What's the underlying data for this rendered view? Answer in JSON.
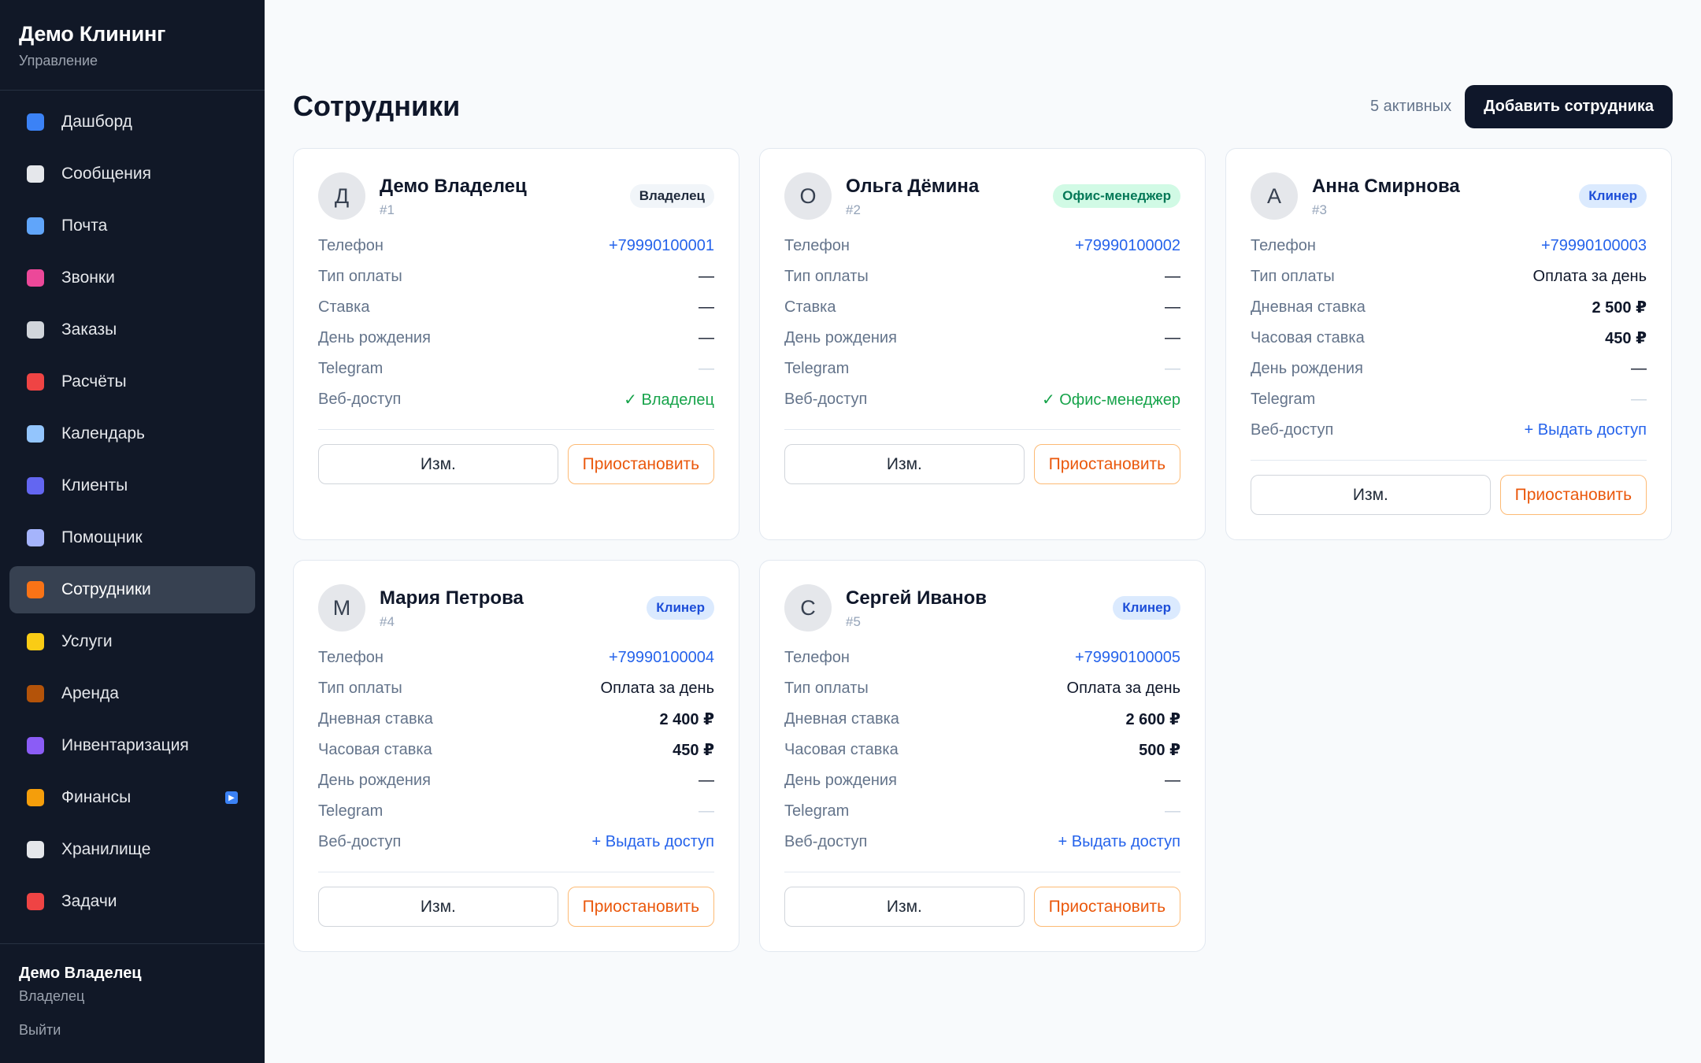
{
  "sidebar": {
    "brand_title": "Демо Клининг",
    "brand_sub": "Управление",
    "items": [
      {
        "label": "Дашборд",
        "icon": "chart-icon",
        "color": "#3b82f6"
      },
      {
        "label": "Сообщения",
        "icon": "speech-bubble-icon",
        "color": "#e5e7eb"
      },
      {
        "label": "Почта",
        "icon": "mail-icon",
        "color": "#60a5fa"
      },
      {
        "label": "Звонки",
        "icon": "phone-icon",
        "color": "#ec4899"
      },
      {
        "label": "Заказы",
        "icon": "clipboard-icon",
        "color": "#d1d5db"
      },
      {
        "label": "Расчёты",
        "icon": "abacus-icon",
        "color": "#ef4444"
      },
      {
        "label": "Календарь",
        "icon": "calendar-icon",
        "color": "#93c5fd"
      },
      {
        "label": "Клиенты",
        "icon": "people-icon",
        "color": "#6366f1"
      },
      {
        "label": "Помощник",
        "icon": "robot-icon",
        "color": "#a5b4fc"
      },
      {
        "label": "Сотрудники",
        "icon": "broom-icon",
        "color": "#f97316"
      },
      {
        "label": "Услуги",
        "icon": "tag-icon",
        "color": "#facc15"
      },
      {
        "label": "Аренда",
        "icon": "package-icon",
        "color": "#b45309"
      },
      {
        "label": "Инвентаризация",
        "icon": "film-icon",
        "color": "#8b5cf6"
      },
      {
        "label": "Финансы",
        "icon": "money-bag-icon",
        "color": "#f59e0b"
      },
      {
        "label": "Хранилище",
        "icon": "cloud-icon",
        "color": "#e5e7eb"
      },
      {
        "label": "Задачи",
        "icon": "pin-icon",
        "color": "#ef4444"
      }
    ],
    "active_index": 9,
    "footer": {
      "name": "Демо Владелец",
      "role": "Владелец",
      "logout": "Выйти"
    }
  },
  "header": {
    "title": "Сотрудники",
    "active_count": "5 активных",
    "add_button": "Добавить сотрудника"
  },
  "cards": [
    {
      "initial": "Д",
      "name": "Демо Владелец",
      "id": "#1",
      "role": "Владелец",
      "role_style": "owner",
      "rows": [
        {
          "label": "Телефон",
          "value": "+79990100001",
          "style": "link"
        },
        {
          "label": "Тип оплаты",
          "value": "—",
          "style": ""
        },
        {
          "label": "Ставка",
          "value": "—",
          "style": ""
        },
        {
          "label": "День рождения",
          "value": "—",
          "style": ""
        },
        {
          "label": "Telegram",
          "value": "—",
          "style": "muted"
        },
        {
          "label": "Веб-доступ",
          "value": "✓ Владелец",
          "style": "green"
        }
      ],
      "edit": "Изм.",
      "suspend": "Приостановить"
    },
    {
      "initial": "О",
      "name": "Ольга Дёмина",
      "id": "#2",
      "role": "Офис-менеджер",
      "role_style": "office",
      "rows": [
        {
          "label": "Телефон",
          "value": "+79990100002",
          "style": "link"
        },
        {
          "label": "Тип оплаты",
          "value": "—",
          "style": ""
        },
        {
          "label": "Ставка",
          "value": "—",
          "style": ""
        },
        {
          "label": "День рождения",
          "value": "—",
          "style": ""
        },
        {
          "label": "Telegram",
          "value": "—",
          "style": "muted"
        },
        {
          "label": "Веб-доступ",
          "value": "✓ Офис-менеджер",
          "style": "green"
        }
      ],
      "edit": "Изм.",
      "suspend": "Приостановить"
    },
    {
      "initial": "А",
      "name": "Анна Смирнова",
      "id": "#3",
      "role": "Клинер",
      "role_style": "cleaner",
      "rows": [
        {
          "label": "Телефон",
          "value": "+79990100003",
          "style": "link"
        },
        {
          "label": "Тип оплаты",
          "value": "Оплата за день",
          "style": ""
        },
        {
          "label": "Дневная ставка",
          "value": "2 500 ₽",
          "style": "bold"
        },
        {
          "label": "Часовая ставка",
          "value": "450 ₽",
          "style": "bold"
        },
        {
          "label": "День рождения",
          "value": "—",
          "style": ""
        },
        {
          "label": "Telegram",
          "value": "—",
          "style": "muted"
        },
        {
          "label": "Веб-доступ",
          "value": "+ Выдать доступ",
          "style": "blue"
        }
      ],
      "edit": "Изм.",
      "suspend": "Приостановить"
    },
    {
      "initial": "М",
      "name": "Мария Петрова",
      "id": "#4",
      "role": "Клинер",
      "role_style": "cleaner",
      "rows": [
        {
          "label": "Телефон",
          "value": "+79990100004",
          "style": "link"
        },
        {
          "label": "Тип оплаты",
          "value": "Оплата за день",
          "style": ""
        },
        {
          "label": "Дневная ставка",
          "value": "2 400 ₽",
          "style": "bold"
        },
        {
          "label": "Часовая ставка",
          "value": "450 ₽",
          "style": "bold"
        },
        {
          "label": "День рождения",
          "value": "—",
          "style": ""
        },
        {
          "label": "Telegram",
          "value": "—",
          "style": "muted"
        },
        {
          "label": "Веб-доступ",
          "value": "+ Выдать доступ",
          "style": "blue"
        }
      ],
      "edit": "Изм.",
      "suspend": "Приостановить"
    },
    {
      "initial": "С",
      "name": "Сергей Иванов",
      "id": "#5",
      "role": "Клинер",
      "role_style": "cleaner",
      "rows": [
        {
          "label": "Телефон",
          "value": "+79990100005",
          "style": "link"
        },
        {
          "label": "Тип оплаты",
          "value": "Оплата за день",
          "style": ""
        },
        {
          "label": "Дневная ставка",
          "value": "2 600 ₽",
          "style": "bold"
        },
        {
          "label": "Часовая ставка",
          "value": "500 ₽",
          "style": "bold"
        },
        {
          "label": "День рождения",
          "value": "—",
          "style": ""
        },
        {
          "label": "Telegram",
          "value": "—",
          "style": "muted"
        },
        {
          "label": "Веб-доступ",
          "value": "+ Выдать доступ",
          "style": "blue"
        }
      ],
      "edit": "Изм.",
      "suspend": "Приостановить"
    }
  ]
}
